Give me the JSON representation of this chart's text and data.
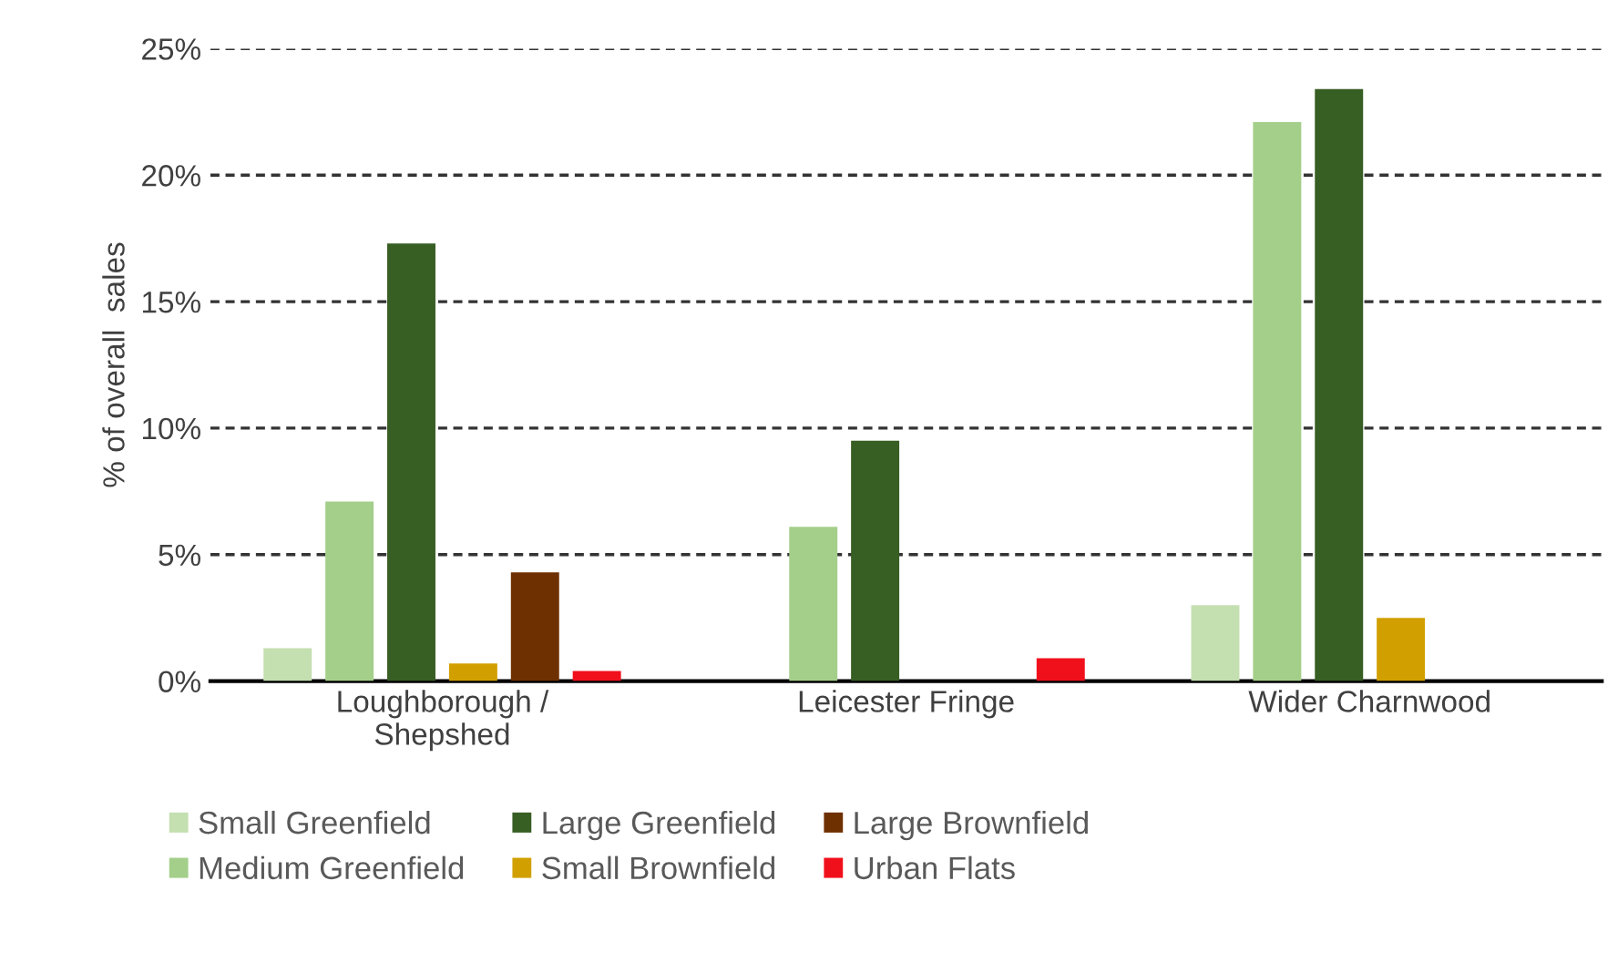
{
  "chart_data": {
    "type": "bar",
    "ylabel": "% of overall  sales",
    "categories": [
      "Loughborough /\nShepshed",
      "Leicester Fringe",
      "Wider Charnwood"
    ],
    "series": [
      {
        "name": "Small Greenfield",
        "color": "#c4dfb0",
        "values": [
          1.3,
          0,
          3.0
        ]
      },
      {
        "name": "Medium Greenfield",
        "color": "#a4cf8a",
        "values": [
          7.1,
          6.1,
          22.1
        ]
      },
      {
        "name": "Large Greenfield",
        "color": "#375e23",
        "values": [
          17.3,
          9.5,
          23.4
        ]
      },
      {
        "name": "Small Brownfield",
        "color": "#d1a000",
        "values": [
          0.7,
          0,
          2.5
        ]
      },
      {
        "name": "Large Brownfield",
        "color": "#6e3000",
        "values": [
          4.3,
          0,
          0
        ]
      },
      {
        "name": "Urban Flats",
        "color": "#f0101c",
        "values": [
          0.4,
          0.9,
          0
        ]
      }
    ],
    "ylim": [
      0,
      25
    ],
    "yticks": [
      {
        "value": 0,
        "label": "0%"
      },
      {
        "value": 5,
        "label": "5%"
      },
      {
        "value": 10,
        "label": "10%"
      },
      {
        "value": 15,
        "label": "15%"
      },
      {
        "value": 20,
        "label": "20%"
      },
      {
        "value": 25,
        "label": "25%"
      }
    ],
    "grid": "y",
    "legend": "bottom"
  }
}
